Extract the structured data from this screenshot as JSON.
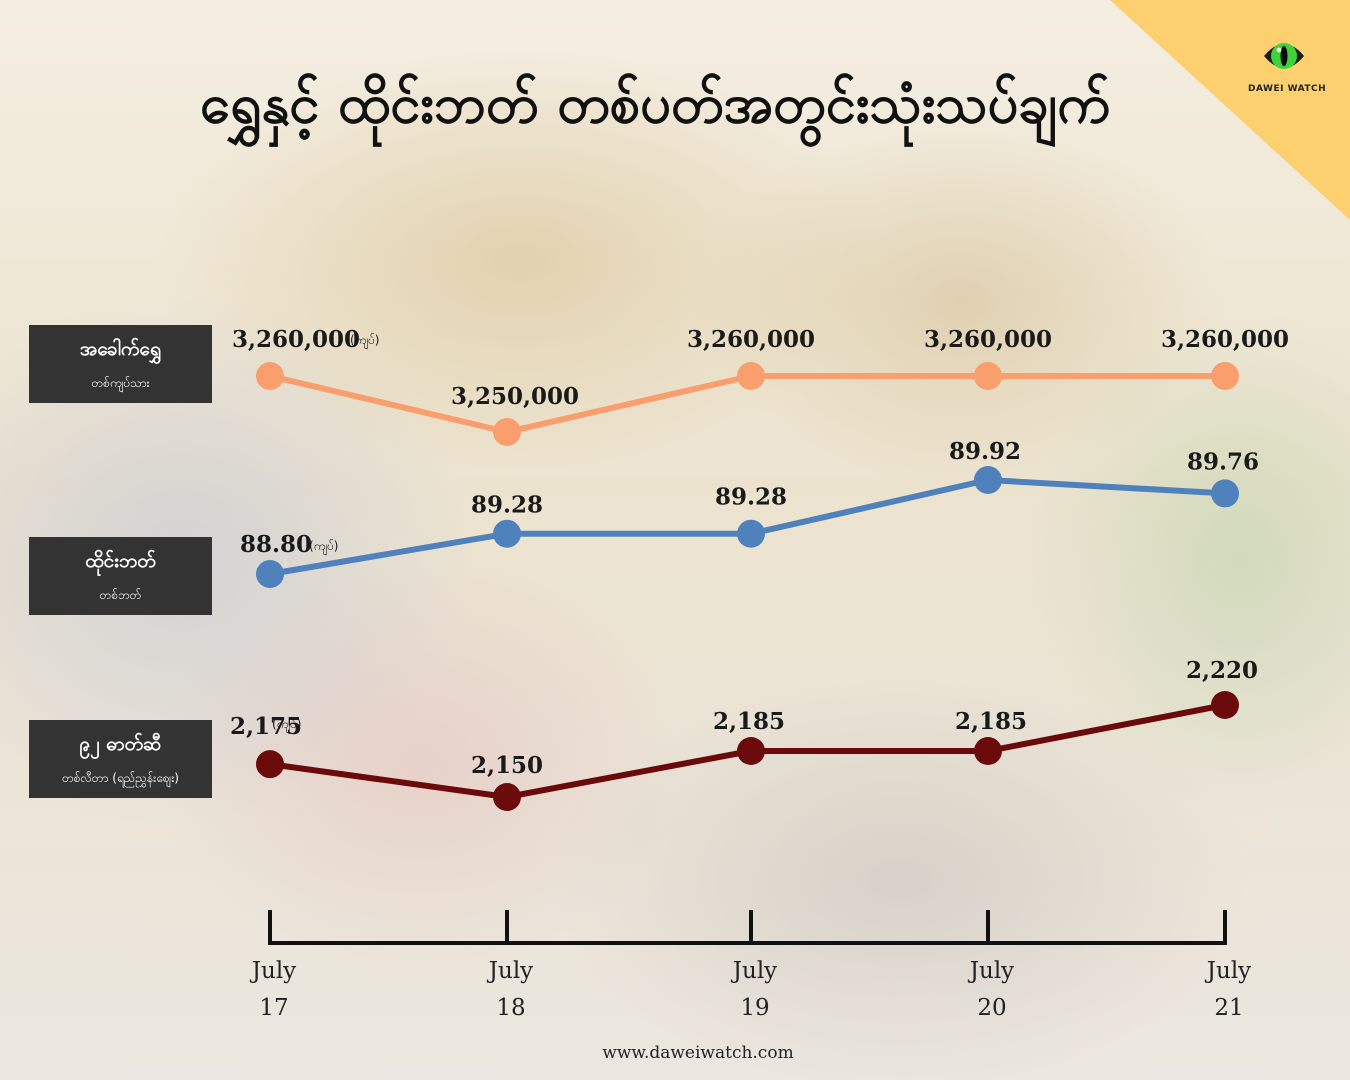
{
  "title": "ရွှေနှင့် ထိုင်းဘတ် တစ်ပတ်အတွင်းသုံးသပ်ချက်",
  "brand": {
    "name": "DAWEI WATCH",
    "website": "www.daweiwatch.com",
    "logo_icon": "cat-eye-icon"
  },
  "colors": {
    "gold": "#f99f6e",
    "baht": "#4f81bd",
    "fuel": "#6b0a0a",
    "corner": "#fcd06e"
  },
  "rows": [
    {
      "name": "အခေါက်ရွှေ",
      "unit": "တစ်ကျပ်သား"
    },
    {
      "name": "ထိုင်းဘတ်",
      "unit": "တစ်ဘတ်"
    },
    {
      "name": "၉၂ ဓာတ်ဆီ",
      "unit": "တစ်လီတာ (ရည်ညွှန်းဈေး)"
    }
  ],
  "unit_note": "(ကျပ်)",
  "chart_data": {
    "type": "line",
    "title": "ရွှေနှင့် ထိုင်းဘတ် တစ်ပတ်အတွင်းသုံးသပ်ချက်",
    "categories": [
      "July 17",
      "July 18",
      "July 19",
      "July 20",
      "July 21"
    ],
    "x_months": [
      "July",
      "July",
      "July",
      "July",
      "July"
    ],
    "x_days": [
      "17",
      "18",
      "19",
      "20",
      "21"
    ],
    "series": [
      {
        "name": "အခေါက်ရွှေ",
        "unit": "တစ်ကျပ်သား",
        "values": [
          3260000,
          3250000,
          3260000,
          3260000,
          3260000
        ],
        "labels": [
          "3,260,000",
          "3,250,000",
          "3,260,000",
          "3,260,000",
          "3,260,000"
        ],
        "color": "#f99f6e"
      },
      {
        "name": "ထိုင်းဘတ်",
        "unit": "တစ်ဘတ်",
        "values": [
          88.8,
          89.28,
          89.28,
          89.92,
          89.76
        ],
        "labels": [
          "88.80",
          "89.28",
          "89.28",
          "89.92",
          "89.76"
        ],
        "color": "#4f81bd"
      },
      {
        "name": "၉၂ ဓာတ်ဆီ",
        "unit": "တစ်လီတာ (ရည်ညွှန်းဈေး)",
        "values": [
          2175,
          2150,
          2185,
          2185,
          2220
        ],
        "labels": [
          "2,175",
          "2,150",
          "2,185",
          "2,185",
          "2,220"
        ],
        "color": "#6b0a0a"
      }
    ],
    "grid": false,
    "legend": "left"
  }
}
